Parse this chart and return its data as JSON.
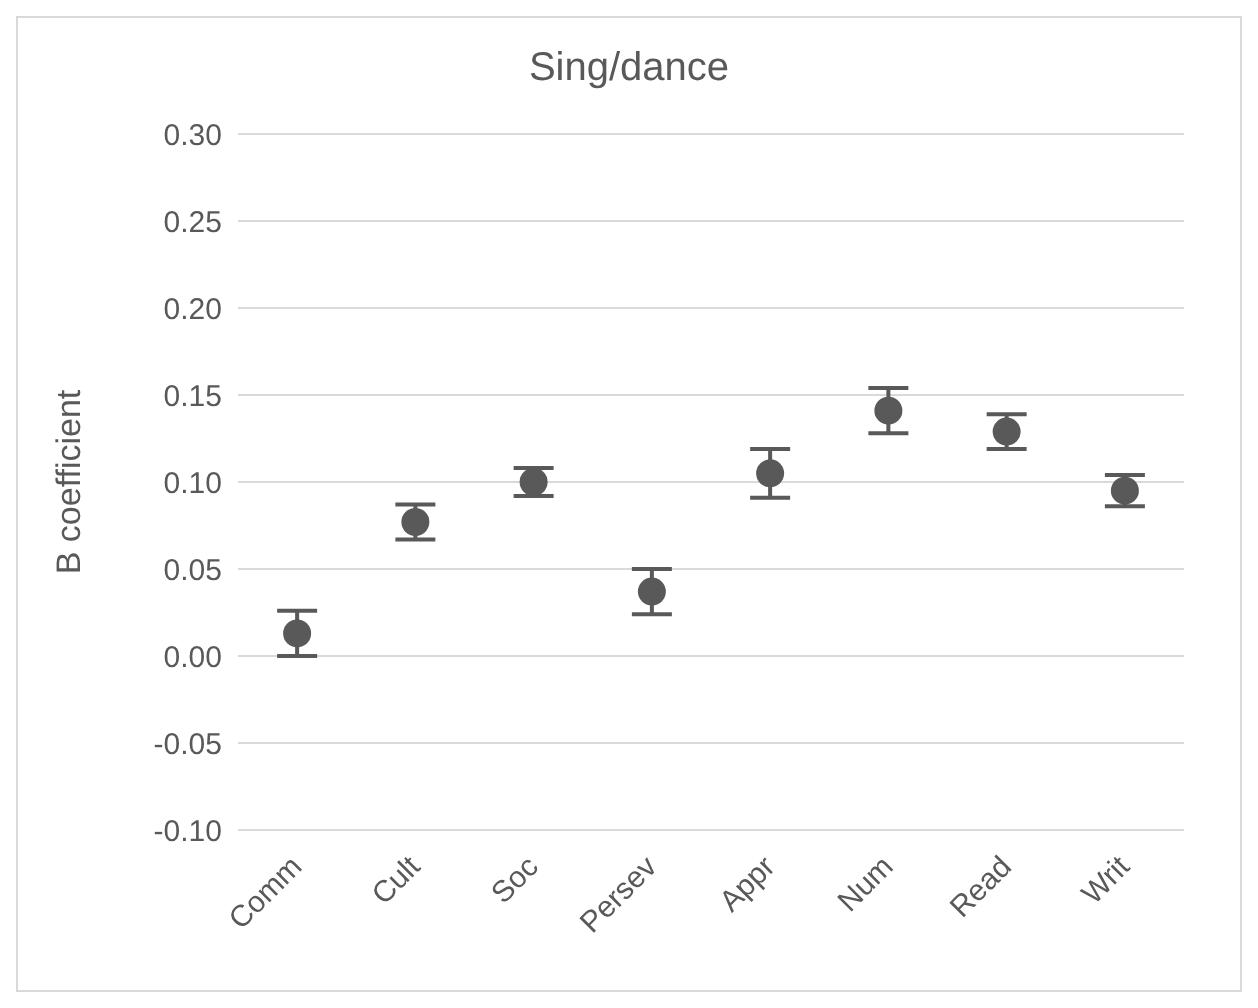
{
  "chart_data": {
    "type": "scatter",
    "title": "Sing/dance",
    "ylabel": "B coefficient",
    "categories": [
      "Comm",
      "Cult",
      "Soc",
      "Persev",
      "Appr",
      "Num",
      "Read",
      "Writ"
    ],
    "values": [
      0.013,
      0.077,
      0.1,
      0.037,
      0.105,
      0.141,
      0.129,
      0.095
    ],
    "errors": [
      0.013,
      0.01,
      0.008,
      0.013,
      0.014,
      0.013,
      0.01,
      0.009
    ],
    "color": "#595959",
    "marker": "circle",
    "ylim": [
      -0.1,
      0.3
    ],
    "yticks": [
      {
        "value": -0.1,
        "label": "-0.10"
      },
      {
        "value": -0.05,
        "label": "-0.05"
      },
      {
        "value": 0,
        "label": "0.00"
      },
      {
        "value": 0.05,
        "label": "0.05"
      },
      {
        "value": 0.1,
        "label": "0.10"
      },
      {
        "value": 0.15,
        "label": "0.15"
      },
      {
        "value": 0.2,
        "label": "0.20"
      },
      {
        "value": 0.25,
        "label": "0.25"
      },
      {
        "value": 0.3,
        "label": "0.30"
      }
    ],
    "grid": "y"
  }
}
